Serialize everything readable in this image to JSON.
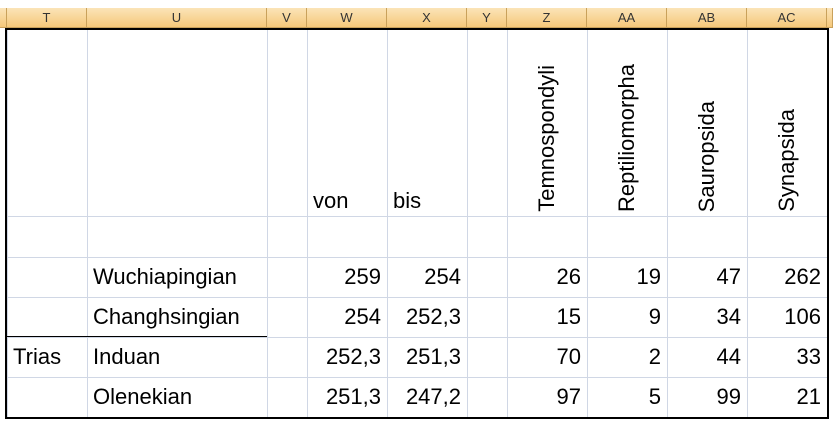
{
  "column_headers": [
    "T",
    "U",
    "V",
    "W",
    "X",
    "Y",
    "Z",
    "AA",
    "AB",
    "AC"
  ],
  "header_row": {
    "W": "von",
    "X": "bis",
    "Z": "Temnospondyli",
    "AA": "Reptiliomorpha",
    "AB": "Sauropsida",
    "AC": "Synapsida"
  },
  "rows": [
    {
      "U": "Wuchiapingian",
      "W": "259",
      "X": "254",
      "Z": "26",
      "AA": "19",
      "AB": "47",
      "AC": "262"
    },
    {
      "U": "Changhsingian",
      "W": "254",
      "X": "252,3",
      "Z": "15",
      "AA": "9",
      "AB": "34",
      "AC": "106"
    },
    {
      "T": "Trias",
      "U": "Induan",
      "W": "252,3",
      "X": "251,3",
      "Z": "70",
      "AA": "2",
      "AB": "44",
      "AC": "33"
    },
    {
      "U": "Olenekian",
      "W": "251,3",
      "X": "247,2",
      "Z": "97",
      "AA": "5",
      "AB": "99",
      "AC": "21"
    }
  ]
}
